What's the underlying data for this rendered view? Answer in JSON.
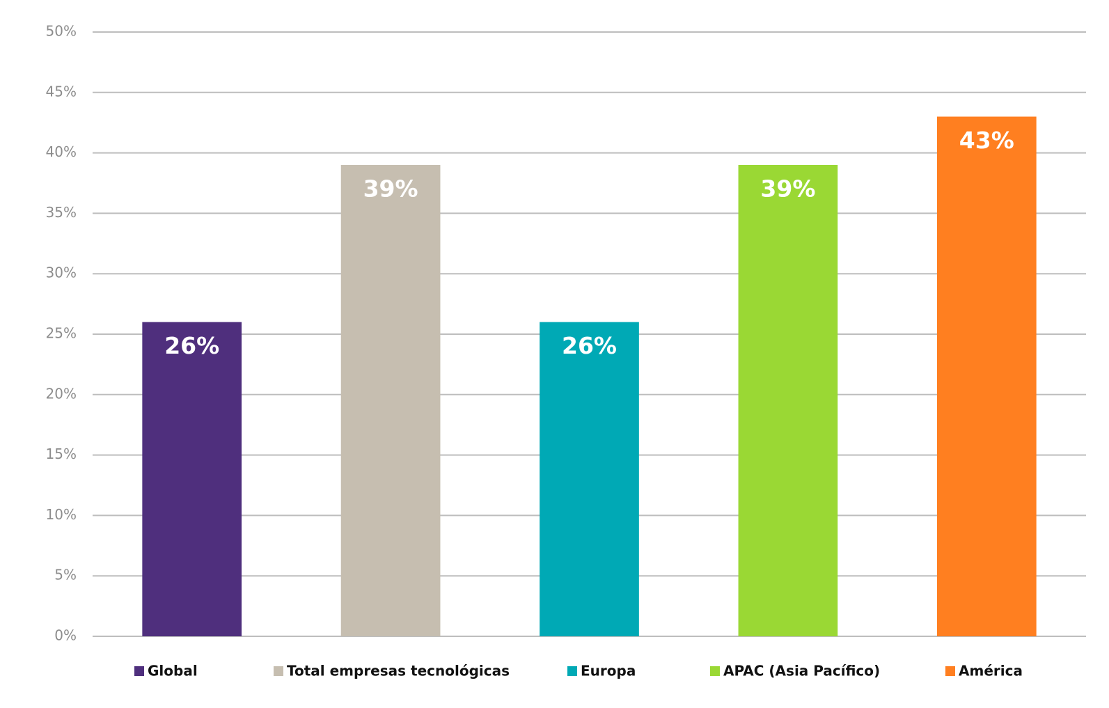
{
  "chart_data": {
    "type": "bar",
    "series": [
      {
        "name": "Global",
        "color": "#4f2f7d",
        "values": [
          26
        ],
        "value_labels": [
          "26%"
        ]
      },
      {
        "name": "Total empresas tecnológicas",
        "color": "#c6beb0",
        "values": [
          39
        ],
        "value_labels": [
          "39%"
        ]
      },
      {
        "name": "Europa",
        "color": "#00a9b5",
        "values": [
          26
        ],
        "value_labels": [
          "26%"
        ]
      },
      {
        "name": "APAC (Asia Pacífico)",
        "color": "#9ad834",
        "values": [
          39
        ],
        "value_labels": [
          "39%"
        ]
      },
      {
        "name": "América",
        "color": "#ff7f20",
        "values": [
          43
        ],
        "value_labels": [
          "43%"
        ]
      }
    ],
    "ylim": [
      0,
      50
    ],
    "yticks": [
      {
        "value": 0,
        "label": "0%"
      },
      {
        "value": 5,
        "label": "5%"
      },
      {
        "value": 10,
        "label": "10%"
      },
      {
        "value": 15,
        "label": "15%"
      },
      {
        "value": 20,
        "label": "20%"
      },
      {
        "value": 25,
        "label": "25%"
      },
      {
        "value": 30,
        "label": "30%"
      },
      {
        "value": 35,
        "label": "35%"
      },
      {
        "value": 40,
        "label": "40%"
      },
      {
        "value": 45,
        "label": "45%"
      },
      {
        "value": 50,
        "label": "50%"
      }
    ],
    "grid": true,
    "legend": "bottom"
  }
}
